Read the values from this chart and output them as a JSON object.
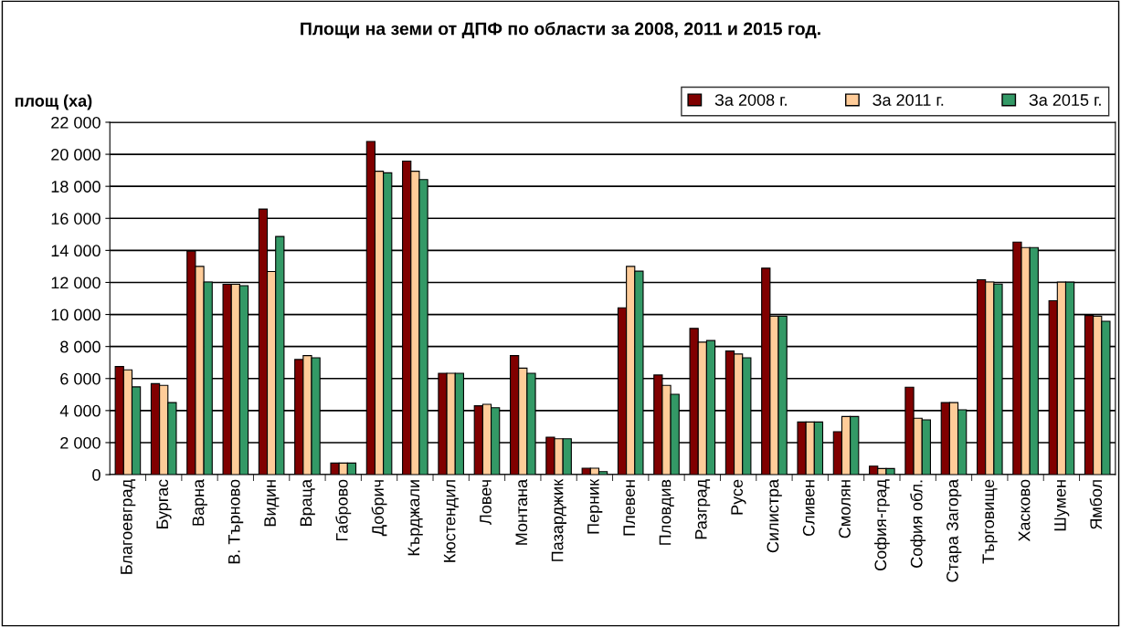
{
  "chart_data": {
    "type": "bar",
    "title": "Площи на земи от ДПФ по области за 2008, 2011 и 2015 год.",
    "ylabel": "площ (ха)",
    "categories": [
      "Благоевград",
      "Бургас",
      "Варна",
      "В. Търново",
      "Видин",
      "Враца",
      "Габрово",
      "Добрич",
      "Кърджали",
      "Кюстендил",
      "Ловеч",
      "Монтана",
      "Пазарджик",
      "Перник",
      "Плевен",
      "Пловдив",
      "Разград",
      "Русе",
      "Силистра",
      "Сливен",
      "Смолян",
      "София-град",
      "София обл.",
      "Стара Загора",
      "Търговище",
      "Хасково",
      "Шумен",
      "Ямбол"
    ],
    "series": [
      {
        "name": "За 2008 г.",
        "color": "#800000",
        "values": [
          6750,
          5680,
          13950,
          11880,
          16580,
          7190,
          720,
          20800,
          19580,
          6330,
          4300,
          7430,
          2340,
          400,
          10420,
          6220,
          9130,
          7720,
          12890,
          3290,
          2680,
          530,
          5460,
          4500,
          12170,
          14520,
          10860,
          9940
        ]
      },
      {
        "name": "За 2011 г.",
        "color": "#ffcc99",
        "values": [
          6540,
          5570,
          13000,
          11880,
          12680,
          7430,
          720,
          18940,
          18940,
          6330,
          4390,
          6650,
          2240,
          400,
          13000,
          5570,
          8270,
          7530,
          9890,
          3290,
          3630,
          380,
          3520,
          4500,
          12030,
          14180,
          12020,
          9890
        ]
      },
      {
        "name": "За 2015 г.",
        "color": "#339966",
        "values": [
          5480,
          4500,
          12030,
          11800,
          14870,
          7300,
          720,
          18840,
          18420,
          6330,
          4180,
          6330,
          2240,
          190,
          12700,
          5020,
          8370,
          7300,
          9890,
          3290,
          3630,
          380,
          3420,
          4050,
          11900,
          14180,
          12020,
          9580
        ]
      }
    ],
    "ylim": [
      0,
      22000
    ],
    "yticks": [
      0,
      {
        "value": 2000,
        "label": "2 000"
      },
      {
        "value": 4000,
        "label": "4 000"
      },
      {
        "value": 6000,
        "label": "6 000"
      },
      {
        "value": 8000,
        "label": "8 000"
      },
      {
        "value": 10000,
        "label": "10 000"
      },
      {
        "value": 12000,
        "label": "12 000"
      },
      {
        "value": 14000,
        "label": "14 000"
      },
      {
        "value": 16000,
        "label": "16 000"
      },
      {
        "value": 18000,
        "label": "18 000"
      },
      {
        "value": 20000,
        "label": "20 000"
      },
      {
        "value": 22000,
        "label": "22 000"
      }
    ],
    "grid": "y",
    "legend": "top right"
  }
}
